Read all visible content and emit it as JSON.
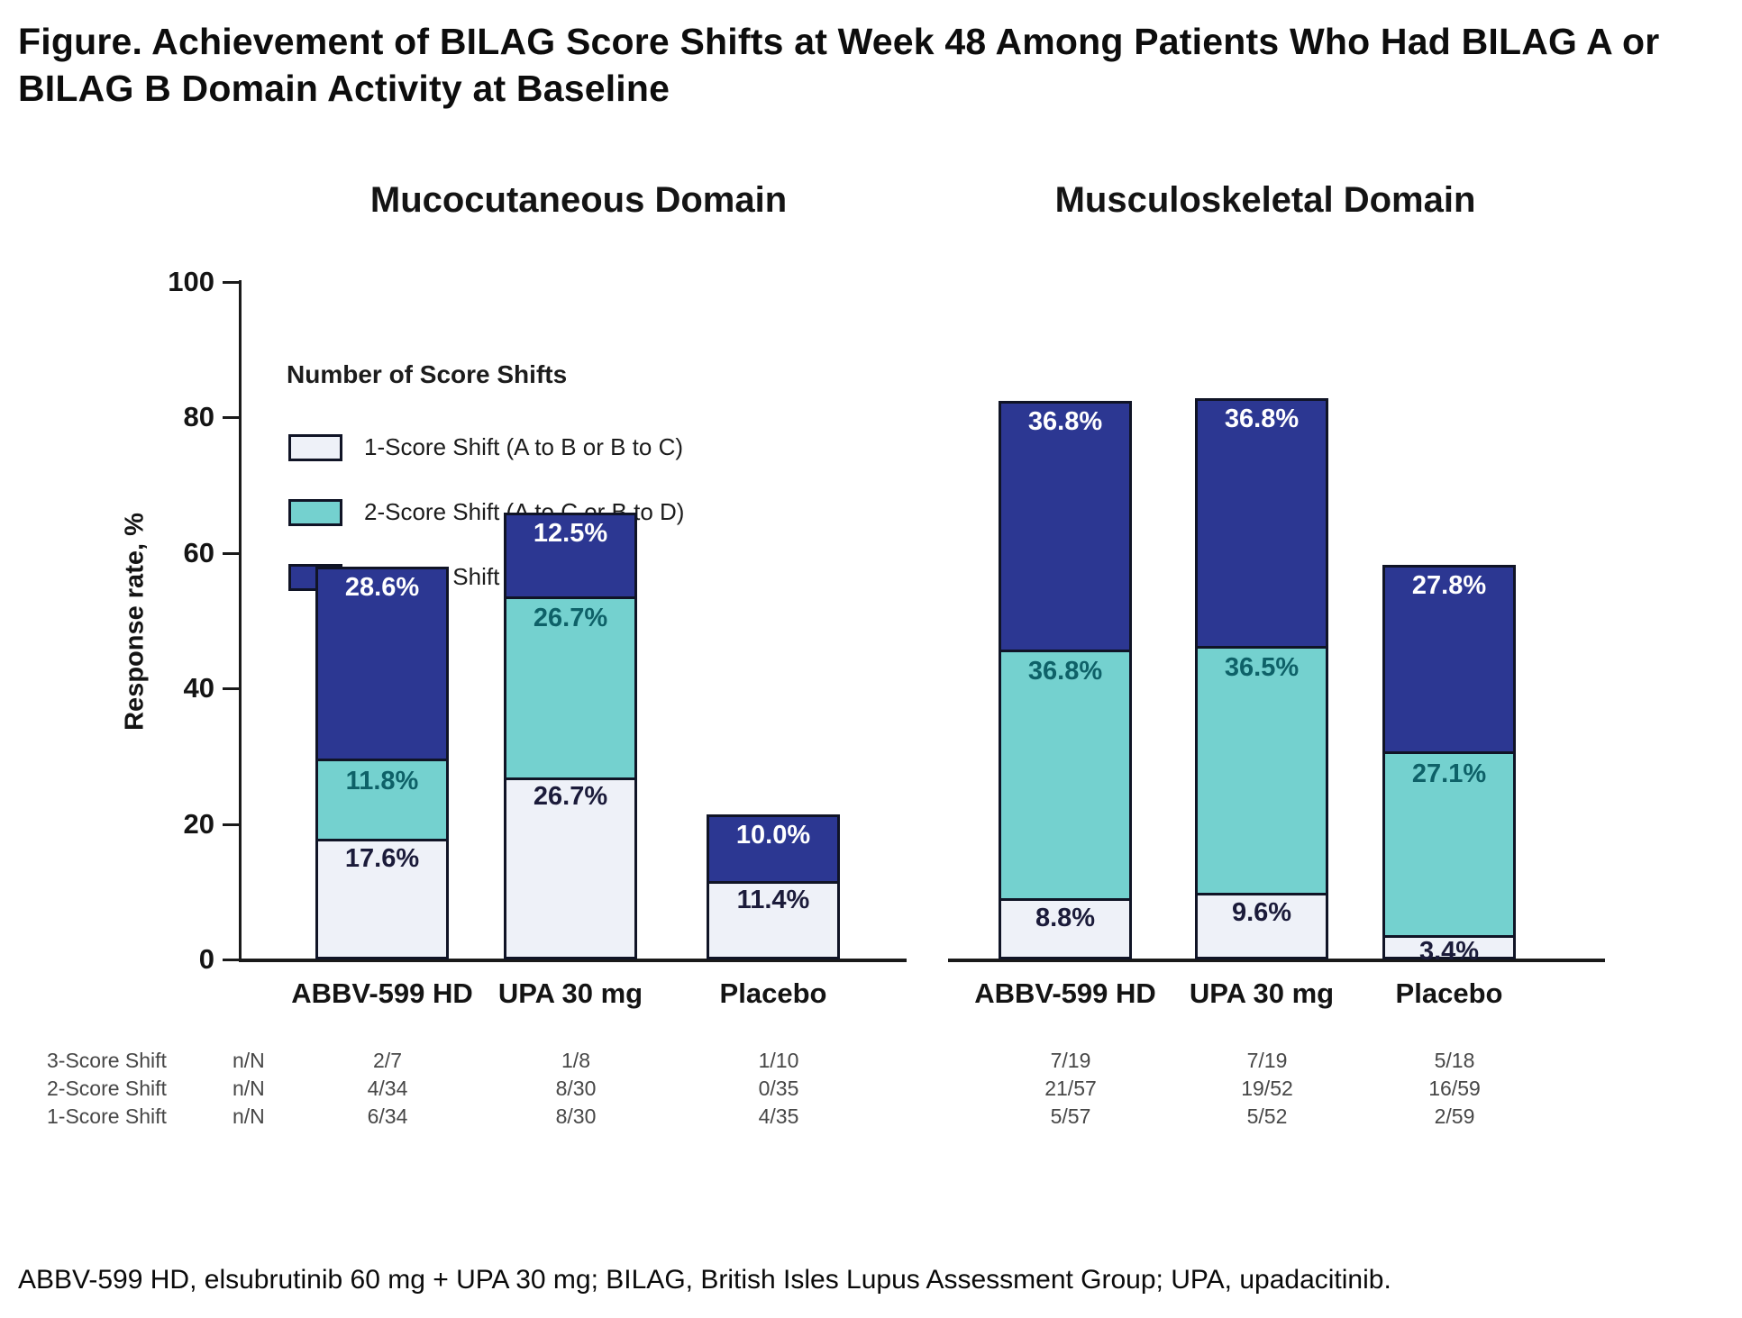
{
  "title": "Figure. Achievement of BILAG Score Shifts at Week 48 Among Patients Who Had BILAG A or BILAG B Domain Activity at Baseline",
  "footnote": "ABBV-599 HD, elsubrutinib 60 mg + UPA 30 mg; BILAG, British Isles Lupus Assessment Group; UPA, upadacitinib.",
  "y_axis": {
    "label": "Response rate, %",
    "ticks": [
      0,
      20,
      40,
      60,
      80,
      100
    ],
    "range": [
      0,
      100
    ]
  },
  "legend": {
    "title": "Number of Score Shifts",
    "position": "upper-left-inside-first-panel",
    "items": [
      {
        "label": "1-Score Shift (A to B or B to C)",
        "color": "#eef1f8"
      },
      {
        "label": "2-Score Shift (A to C or B to D)",
        "color": "#74d1cf"
      },
      {
        "label": "3-Score Shift (A to D)",
        "color": "#2c3792"
      }
    ]
  },
  "colors": {
    "segment_1_score": "#eef1f8",
    "segment_2_score": "#74d1cf",
    "segment_3_score": "#2c3792",
    "bar_outline": "#101426",
    "label_on_1_score": "#1b1b3a",
    "label_on_2_score": "#0e6168",
    "label_on_3_score": "#ffffff",
    "axis": "#1a1a1a",
    "stats_text": "#474747"
  },
  "chart_data": [
    {
      "type": "bar",
      "stacked": true,
      "title": "Mucocutaneous Domain",
      "categories": [
        "ABBV-599 HD",
        "UPA 30 mg",
        "Placebo"
      ],
      "ylabel": "Response rate, %",
      "ylim": [
        0,
        100
      ],
      "grid": false,
      "series": [
        {
          "name": "1-Score Shift (A to B or B to C)",
          "values": [
            17.6,
            26.7,
            11.4
          ],
          "labels": [
            "17.6%",
            "26.7%",
            "11.4%"
          ],
          "n_over_N": [
            "6/34",
            "8/30",
            "4/35"
          ]
        },
        {
          "name": "2-Score Shift (A to C or B to D)",
          "values": [
            11.8,
            26.7,
            0
          ],
          "labels": [
            "11.8%",
            "26.7%",
            ""
          ],
          "n_over_N": [
            "4/34",
            "8/30",
            "0/35"
          ]
        },
        {
          "name": "3-Score Shift (A to D)",
          "values": [
            28.6,
            12.5,
            10.0
          ],
          "labels": [
            "28.6%",
            "12.5%",
            "10.0%"
          ],
          "n_over_N": [
            "2/7",
            "1/8",
            "1/10"
          ]
        }
      ]
    },
    {
      "type": "bar",
      "stacked": true,
      "title": "Musculoskeletal Domain",
      "categories": [
        "ABBV-599 HD",
        "UPA 30 mg",
        "Placebo"
      ],
      "ylabel": "Response rate, %",
      "ylim": [
        0,
        100
      ],
      "grid": false,
      "series": [
        {
          "name": "1-Score Shift (A to B or B to C)",
          "values": [
            8.8,
            9.6,
            3.4
          ],
          "labels": [
            "8.8%",
            "9.6%",
            "3.4%"
          ],
          "n_over_N": [
            "5/57",
            "5/52",
            "2/59"
          ]
        },
        {
          "name": "2-Score Shift (A to C or B to D)",
          "values": [
            36.8,
            36.5,
            27.1
          ],
          "labels": [
            "36.8%",
            "36.5%",
            "27.1%"
          ],
          "n_over_N": [
            "21/57",
            "19/52",
            "16/59"
          ]
        },
        {
          "name": "3-Score Shift (A to D)",
          "values": [
            36.8,
            36.8,
            27.8
          ],
          "labels": [
            "36.8%",
            "36.8%",
            "27.8%"
          ],
          "n_over_N": [
            "7/19",
            "7/19",
            "5/18"
          ]
        }
      ]
    }
  ],
  "stats_table": {
    "unit_label": "n/N",
    "rows": [
      {
        "label": "3-Score Shift",
        "mucocutaneous": [
          "2/7",
          "1/8",
          "1/10"
        ],
        "musculoskeletal": [
          "7/19",
          "7/19",
          "5/18"
        ]
      },
      {
        "label": "2-Score Shift",
        "mucocutaneous": [
          "4/34",
          "8/30",
          "0/35"
        ],
        "musculoskeletal": [
          "21/57",
          "19/52",
          "16/59"
        ]
      },
      {
        "label": "1-Score Shift",
        "mucocutaneous": [
          "6/34",
          "8/30",
          "4/35"
        ],
        "musculoskeletal": [
          "5/57",
          "5/52",
          "2/59"
        ]
      }
    ]
  }
}
